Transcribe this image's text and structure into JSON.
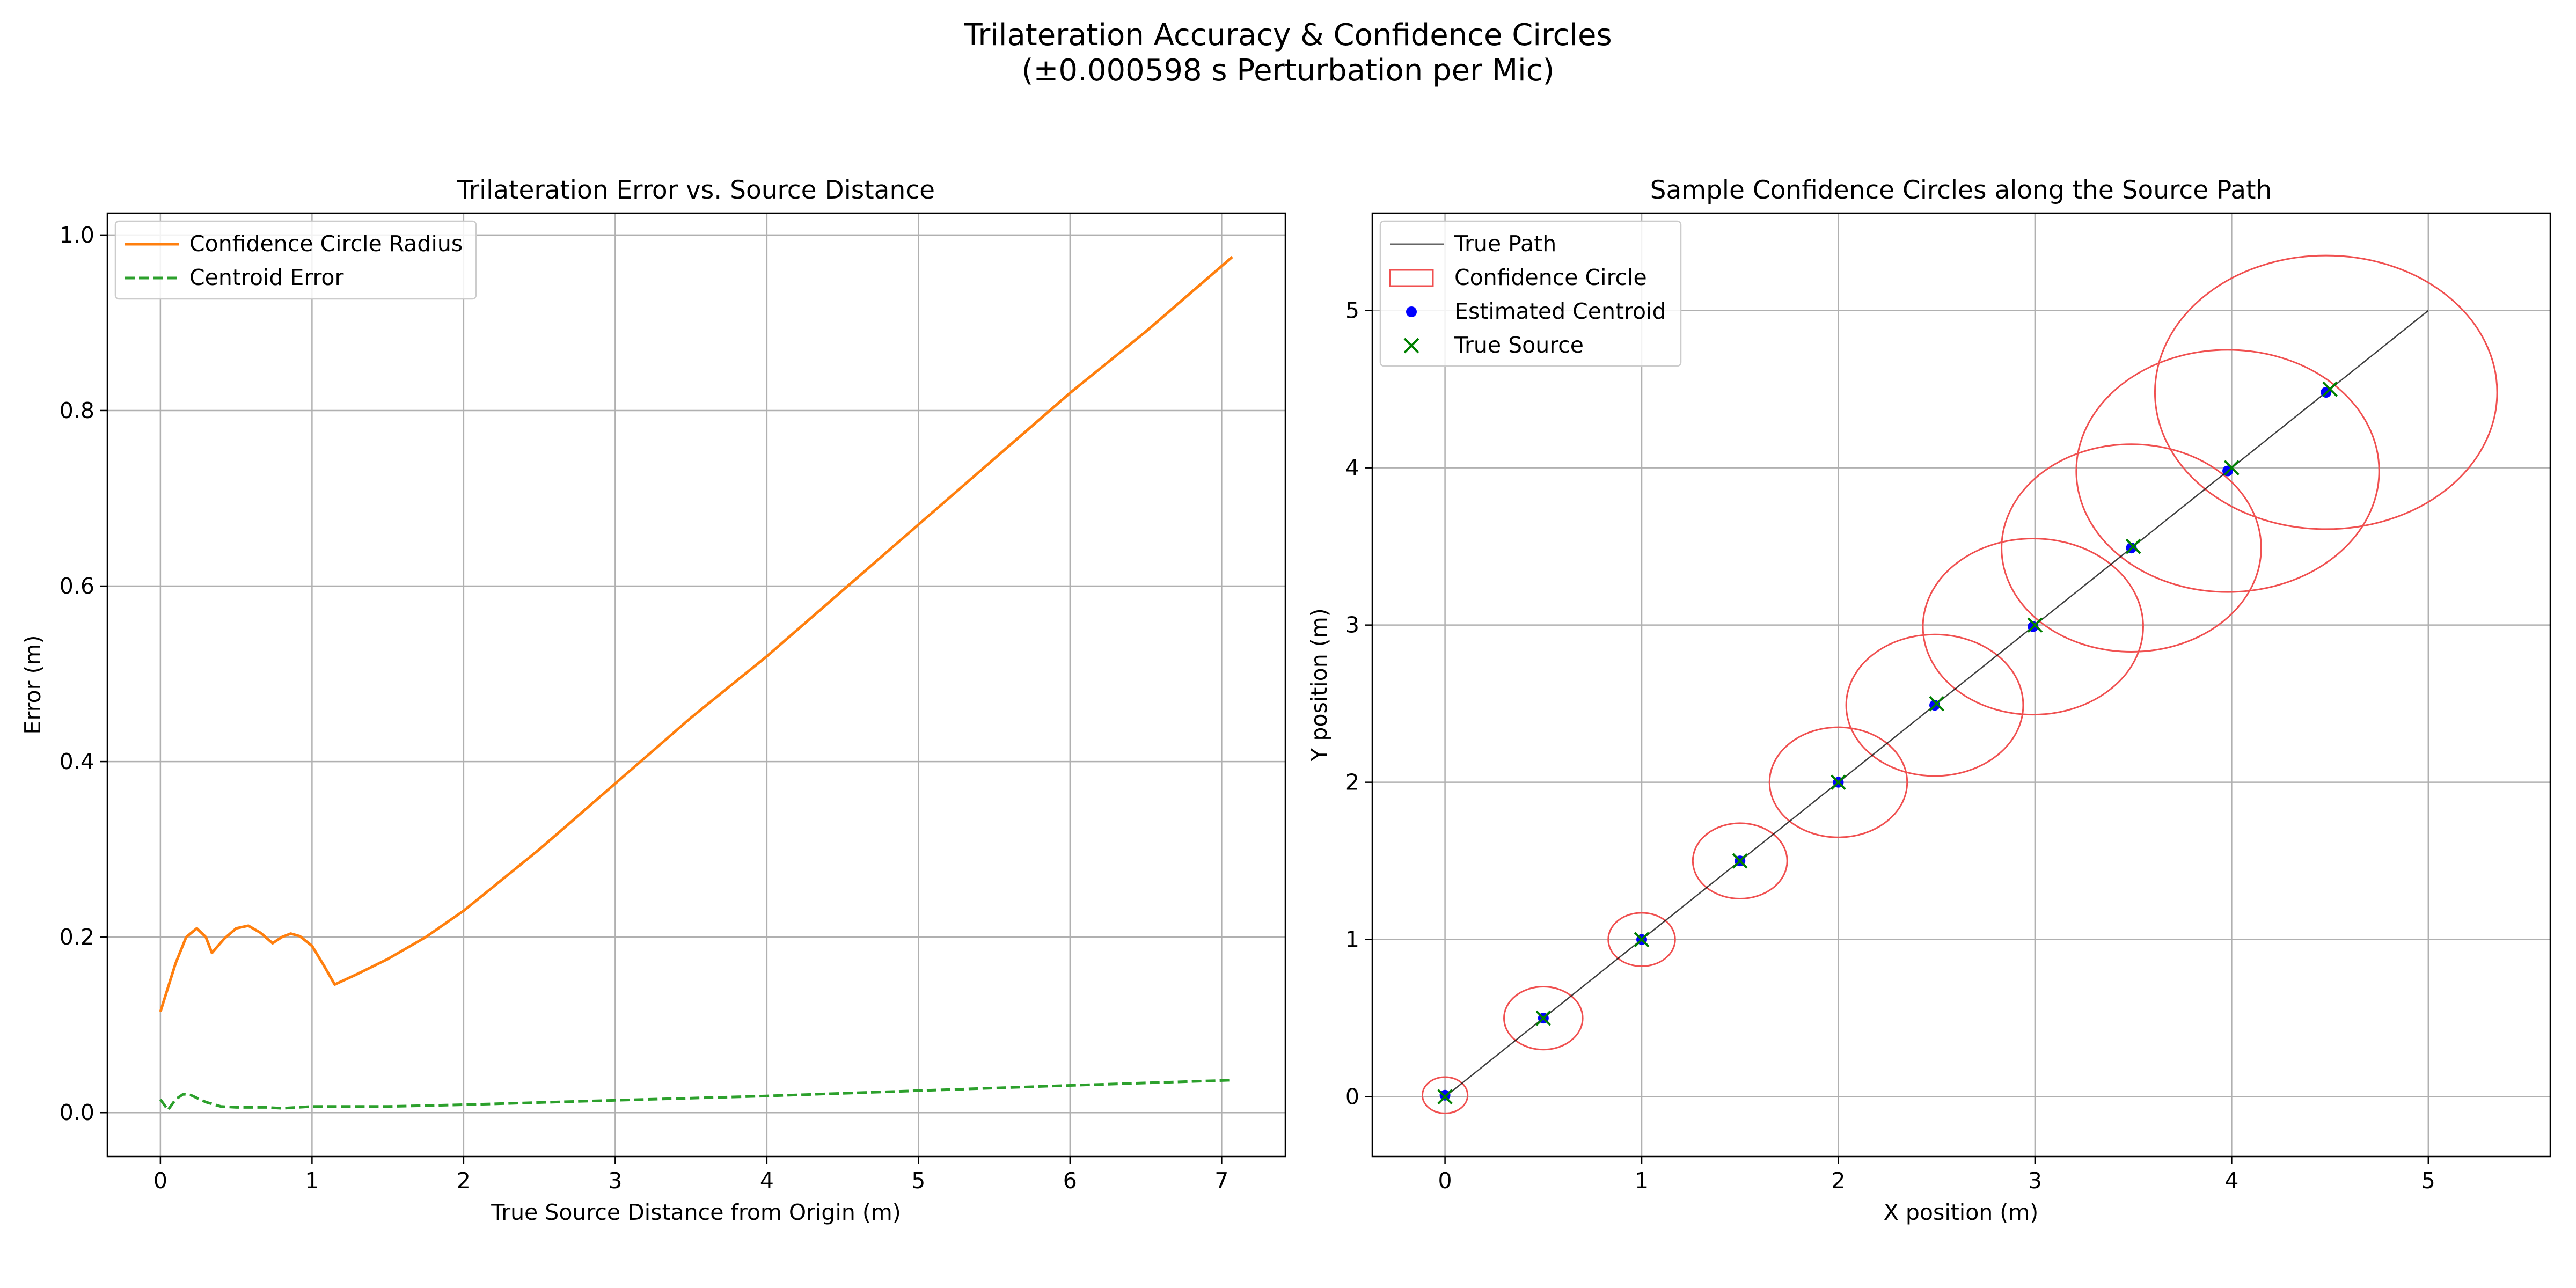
{
  "figure": {
    "title_line1": "Trilateration Accuracy & Confidence Circles",
    "title_line2": "(±0.000598 s Perturbation per Mic)"
  },
  "chart_data": [
    {
      "type": "line",
      "title": "Trilateration Error vs. Source Distance",
      "xlabel": "True Source Distance from Origin (m)",
      "ylabel": "Error (m)",
      "xlim": [
        -0.35,
        7.42
      ],
      "ylim": [
        -0.05,
        1.025
      ],
      "xticks": [
        0,
        1,
        2,
        3,
        4,
        5,
        6,
        7
      ],
      "yticks": [
        0.0,
        0.2,
        0.4,
        0.6,
        0.8,
        1.0
      ],
      "xtick_labels": [
        "0",
        "1",
        "2",
        "3",
        "4",
        "5",
        "6",
        "7"
      ],
      "ytick_labels": [
        "0.0",
        "0.2",
        "0.4",
        "0.6",
        "0.8",
        "1.0"
      ],
      "grid": true,
      "legend_position": "upper-left",
      "series": [
        {
          "name": "Confidence Circle Radius",
          "color": "#ff7f0e",
          "style": "solid",
          "x": [
            0,
            0.1,
            0.17,
            0.24,
            0.3,
            0.34,
            0.42,
            0.5,
            0.58,
            0.66,
            0.74,
            0.8,
            0.86,
            0.92,
            1.0,
            1.08,
            1.15,
            1.3,
            1.5,
            1.75,
            2.0,
            2.5,
            3.0,
            3.5,
            4.0,
            4.5,
            5.0,
            5.5,
            6.0,
            6.5,
            7.07
          ],
          "y": [
            0.115,
            0.17,
            0.2,
            0.21,
            0.2,
            0.182,
            0.198,
            0.21,
            0.213,
            0.205,
            0.193,
            0.2,
            0.204,
            0.201,
            0.19,
            0.167,
            0.146,
            0.158,
            0.175,
            0.2,
            0.23,
            0.3,
            0.375,
            0.45,
            0.52,
            0.595,
            0.67,
            0.745,
            0.82,
            0.89,
            0.975
          ]
        },
        {
          "name": "Centroid Error",
          "color": "#2ca02c",
          "style": "dashed",
          "x": [
            0,
            0.05,
            0.1,
            0.15,
            0.2,
            0.25,
            0.3,
            0.4,
            0.5,
            0.6,
            0.7,
            0.8,
            1.0,
            1.5,
            2.0,
            3.0,
            4.0,
            5.0,
            6.0,
            7.07
          ],
          "y": [
            0.015,
            0.003,
            0.015,
            0.021,
            0.02,
            0.016,
            0.012,
            0.007,
            0.006,
            0.006,
            0.006,
            0.005,
            0.007,
            0.007,
            0.009,
            0.014,
            0.019,
            0.025,
            0.031,
            0.037
          ]
        }
      ]
    },
    {
      "type": "scatter",
      "title": "Sample Confidence Circles along the Source Path",
      "xlabel": "X position (m)",
      "ylabel": "Y position (m)",
      "xlim": [
        -0.37,
        5.62
      ],
      "ylim": [
        -0.38,
        5.62
      ],
      "xticks": [
        0,
        1,
        2,
        3,
        4,
        5
      ],
      "yticks": [
        0,
        1,
        2,
        3,
        4,
        5
      ],
      "xtick_labels": [
        "0",
        "1",
        "2",
        "3",
        "4",
        "5"
      ],
      "ytick_labels": [
        "0",
        "1",
        "2",
        "3",
        "4",
        "5"
      ],
      "grid": true,
      "legend_position": "upper-left",
      "legend": [
        "True Path",
        "Confidence Circle",
        "Estimated Centroid",
        "True Source"
      ],
      "true_path": {
        "x": [
          0,
          5
        ],
        "y": [
          0,
          5
        ],
        "color": "#000000"
      },
      "circle_color": "#f05050",
      "centroid_color": "#0000ff",
      "source_color": "#008000",
      "samples": [
        {
          "true_x": 0.0,
          "true_y": 0.0,
          "est_x": 0.0,
          "est_y": 0.01,
          "radius": 0.115
        },
        {
          "true_x": 0.5,
          "true_y": 0.5,
          "est_x": 0.5,
          "est_y": 0.5,
          "radius": 0.2
        },
        {
          "true_x": 1.0,
          "true_y": 1.0,
          "est_x": 1.0,
          "est_y": 1.0,
          "radius": 0.17
        },
        {
          "true_x": 1.5,
          "true_y": 1.5,
          "est_x": 1.5,
          "est_y": 1.5,
          "radius": 0.24
        },
        {
          "true_x": 2.0,
          "true_y": 2.0,
          "est_x": 2.0,
          "est_y": 2.0,
          "radius": 0.35
        },
        {
          "true_x": 2.5,
          "true_y": 2.5,
          "est_x": 2.49,
          "est_y": 2.49,
          "radius": 0.45
        },
        {
          "true_x": 3.0,
          "true_y": 3.0,
          "est_x": 2.99,
          "est_y": 2.99,
          "radius": 0.56
        },
        {
          "true_x": 3.5,
          "true_y": 3.5,
          "est_x": 3.49,
          "est_y": 3.49,
          "radius": 0.66
        },
        {
          "true_x": 4.0,
          "true_y": 4.0,
          "est_x": 3.98,
          "est_y": 3.98,
          "radius": 0.77
        },
        {
          "true_x": 4.5,
          "true_y": 4.5,
          "est_x": 4.48,
          "est_y": 4.48,
          "radius": 0.87
        }
      ]
    }
  ]
}
